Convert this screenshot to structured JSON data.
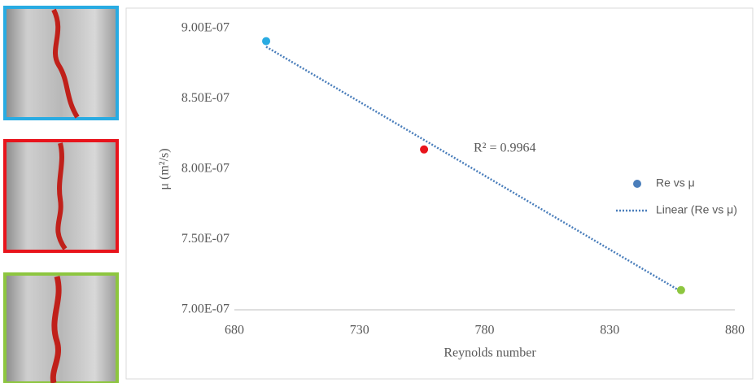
{
  "chart_data": {
    "type": "scatter",
    "x_label": "Reynolds number",
    "y_label": "μ (m²/s)",
    "series": [
      {
        "name": "Re vs μ",
        "color": "#4a7ebb",
        "x": [
          692.7,
          755.8,
          858.5
        ],
        "values": [
          8.91e-07,
          8.14e-07,
          7.14e-07
        ],
        "point_colors": [
          "#29abe2",
          "#e8141c",
          "#8dc63f"
        ]
      }
    ],
    "trendline": {
      "name": "Linear (Re vs μ)",
      "color": "#4a7ebb",
      "x": [
        692.7,
        858.5
      ],
      "values": [
        8.87e-07,
        7.13e-07
      ]
    },
    "annotation": "R² = 0.9964",
    "xlim": [
      680,
      880
    ],
    "xticks": [
      680,
      730,
      780,
      830,
      880
    ],
    "ylim": [
      7e-07,
      9e-07
    ],
    "yticks": [
      {
        "value": 7e-07,
        "label": "7.00E-07"
      },
      {
        "value": 7.5e-07,
        "label": "7.50E-07"
      },
      {
        "value": 8e-07,
        "label": "8.00E-07"
      },
      {
        "value": 8.5e-07,
        "label": "8.50E-07"
      },
      {
        "value": 9e-07,
        "label": "9.00E-07"
      }
    ],
    "grid": false,
    "legend": "right"
  }
}
